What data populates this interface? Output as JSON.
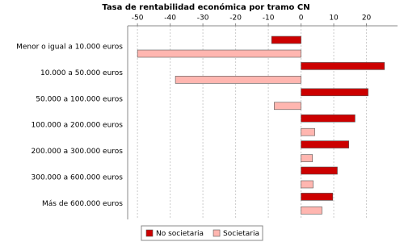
{
  "chart_data": {
    "type": "hbar",
    "title": "Tasa de rentabilidad económica por tramo CN",
    "categories": [
      "Menor o igual a 10.000 euros",
      "10.000 a 50.000 euros",
      "50.000 a 100.000 euros",
      "100.000 a 200.000 euros",
      "200.000 a 300.000 euros",
      "300.000 a 600.000 euros",
      "Más de 600.000 euros"
    ],
    "series": [
      {
        "name": "No societaria",
        "color": "#cc0000",
        "values": [
          -9,
          25.5,
          20.5,
          16.5,
          14.6,
          11.1,
          9.7
        ]
      },
      {
        "name": "Societaria",
        "color": "#ffb6b0",
        "values": [
          -50,
          -38.4,
          -8.2,
          4.2,
          3.5,
          3.7,
          6.4
        ]
      }
    ],
    "xlim": [
      -53,
      29.5
    ],
    "xticks": [
      -50,
      -40,
      -30,
      -20,
      -10,
      0,
      10,
      20
    ],
    "grid": true
  }
}
